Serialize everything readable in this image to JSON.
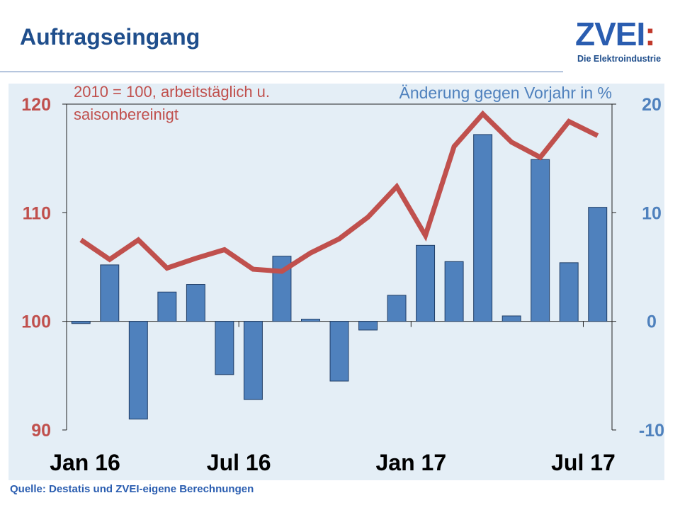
{
  "header": {
    "title": "Auftragseingang"
  },
  "logo": {
    "main": "ZVEI",
    "colon": ":",
    "sub": "Die Elektroindustrie"
  },
  "footer": {
    "source": "Quelle: Destatis und ZVEI-eigene Berechnungen"
  },
  "colors": {
    "index_line": "#c0504d",
    "bars": "#4f81bd",
    "title": "#1f4e8c",
    "plot_bg": "#e4eef6"
  },
  "chart_data": {
    "type": "bar+line",
    "x": [
      "Jan 16",
      "Feb 16",
      "Mar 16",
      "Apr 16",
      "May 16",
      "Jun 16",
      "Jul 16",
      "Aug 16",
      "Sep 16",
      "Oct 16",
      "Nov 16",
      "Dec 16",
      "Jan 17",
      "Feb 17",
      "Mar 17",
      "Apr 17",
      "May 17",
      "Jun 17",
      "Jul 17"
    ],
    "x_tick_labels": [
      "Jan 16",
      "Jul 16",
      "Jan 17",
      "Jul 17"
    ],
    "x_tick_label_indices": [
      0,
      6,
      12,
      18
    ],
    "series": [
      {
        "axis": "right",
        "kind": "bar",
        "values": [
          -0.2,
          5.2,
          -9.0,
          2.7,
          3.4,
          -4.9,
          -7.2,
          6.0,
          0.2,
          -5.5,
          -0.8,
          2.4,
          7.0,
          5.5,
          17.2,
          0.5,
          14.9,
          5.4,
          10.5
        ]
      },
      {
        "axis": "left",
        "kind": "line",
        "values": [
          107.5,
          105.7,
          107.5,
          104.9,
          105.8,
          106.6,
          104.8,
          104.6,
          106.3,
          107.6,
          109.6,
          112.4,
          107.9,
          116.1,
          119.1,
          116.5,
          115.1,
          118.4,
          117.1
        ]
      }
    ],
    "left_axis": {
      "label": "2010 = 100, arbeitstäglich u. saisonbereinigt",
      "ylim": [
        90,
        120
      ],
      "ticks": [
        "90",
        "100",
        "110",
        "120"
      ]
    },
    "right_axis": {
      "label": "Änderung gegen Vorjahr in %",
      "ylim": [
        -10,
        20
      ],
      "ticks": [
        "-10",
        "0",
        "10",
        "20"
      ]
    }
  }
}
